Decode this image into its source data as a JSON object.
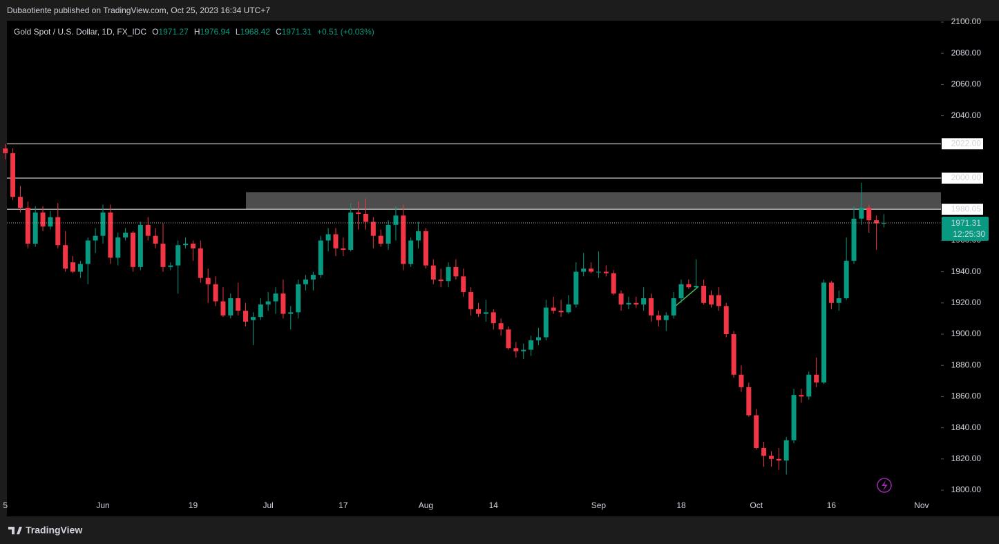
{
  "header": {
    "publisher": "Dubaotiente published on TradingView.com, Oct 25, 2023 16:34 UTC+7",
    "brand": "TradingView"
  },
  "chart_data": {
    "type": "candlestick",
    "symbol": "Gold Spot / U.S. Dollar, 1D, FX_IDC",
    "ohlc_prefixes": [
      "O",
      "H",
      "L",
      "C"
    ],
    "change": "+0.51 (+0.03%)",
    "countdown": "12:25:30",
    "up_color": "#089981",
    "down_color": "#f23645",
    "categories": [
      "5",
      null,
      null,
      null,
      null,
      null,
      null,
      null,
      null,
      null,
      null,
      null,
      null,
      "Jun",
      null,
      null,
      null,
      null,
      null,
      null,
      null,
      null,
      null,
      null,
      null,
      "19",
      null,
      null,
      null,
      null,
      null,
      null,
      null,
      null,
      null,
      "Jul",
      null,
      null,
      null,
      null,
      null,
      null,
      null,
      null,
      null,
      "17",
      null,
      null,
      null,
      null,
      null,
      null,
      null,
      null,
      null,
      null,
      "Aug",
      null,
      null,
      null,
      null,
      null,
      null,
      null,
      null,
      "14",
      null,
      null,
      null,
      null,
      null,
      null,
      null,
      null,
      null,
      null,
      null,
      null,
      null,
      "Sep",
      null,
      null,
      null,
      null,
      null,
      null,
      null,
      null,
      null,
      null,
      "18",
      null,
      null,
      null,
      null,
      null,
      null,
      null,
      null,
      null,
      "Oct",
      null,
      null,
      null,
      null,
      null,
      null,
      null,
      null,
      null,
      "16",
      null,
      null,
      null,
      null,
      null,
      null,
      null,
      null,
      null,
      null,
      null,
      "Nov"
    ],
    "open": [
      2019,
      2016,
      1988,
      1981,
      1958,
      1978,
      1969,
      1975,
      1957,
      1946,
      1940,
      1945,
      1960,
      1963,
      1978,
      1949,
      1962,
      1965,
      1943,
      1970,
      1963,
      1958,
      1943,
      1944,
      1957,
      1958,
      1955,
      1936,
      1932,
      1921,
      1912,
      1923,
      1915,
      1909,
      1911,
      1919,
      1921,
      1926,
      1913,
      1914,
      1932,
      1935,
      1938,
      1960,
      1964,
      1955,
      1954,
      1978,
      1977,
      1972,
      1963,
      1958,
      1970,
      1976,
      1945,
      1960,
      1966,
      1944,
      1935,
      1934,
      1943,
      1937,
      1927,
      1916,
      1913,
      1914,
      1907,
      1903,
      1891,
      1889,
      1890,
      1896,
      1898,
      1917,
      1915,
      1914,
      1919,
      1940,
      1942,
      1940,
      1940,
      1939,
      1926,
      1919,
      1920,
      1919,
      1923,
      1912,
      1909,
      1912,
      1923,
      1932,
      1930,
      1931,
      1925,
      1925,
      1918,
      1900,
      1874,
      1866,
      1848,
      1827,
      1822,
      1820,
      1819,
      1832,
      1861,
      1860,
      1874,
      1869,
      1933,
      1920,
      1923,
      1947,
      1974,
      1981,
      1973,
      1971.27,
      null,
      null,
      null,
      null,
      null
    ],
    "high": [
      2022,
      2019,
      1995,
      1985,
      1982,
      1982,
      1979,
      1984,
      1966,
      1950,
      1947,
      1962,
      1968,
      1983,
      1983,
      1965,
      1968,
      1966,
      1972,
      1975,
      1968,
      1971,
      1946,
      1960,
      1962,
      1960,
      1960,
      1942,
      1937,
      1930,
      1926,
      1933,
      1920,
      1914,
      1923,
      1927,
      1930,
      1935,
      1918,
      1935,
      1938,
      1940,
      1963,
      1968,
      1968,
      1962,
      1984,
      1985,
      1987,
      1975,
      1967,
      1973,
      1982,
      1983,
      1962,
      1972,
      1968,
      1948,
      1942,
      1946,
      1948,
      1942,
      1930,
      1920,
      1922,
      1916,
      1910,
      1905,
      1895,
      1894,
      1899,
      1904,
      1922,
      1924,
      1922,
      1925,
      1946,
      1952,
      1946,
      1953,
      1944,
      1941,
      1928,
      1924,
      1924,
      1930,
      1926,
      1915,
      1914,
      1927,
      1935,
      1935,
      1948,
      1935,
      1928,
      1930,
      1920,
      1902,
      1880,
      1869,
      1852,
      1831,
      1825,
      1827,
      1834,
      1865,
      1865,
      1876,
      1885,
      1935,
      1934,
      1928,
      1962,
      1982,
      1997,
      1983,
      1976,
      1976.94,
      null,
      null,
      null,
      null,
      null
    ],
    "low": [
      2012,
      1986,
      1978,
      1955,
      1956,
      1966,
      1967,
      1955,
      1940,
      1939,
      1936,
      1932,
      1952,
      1958,
      1945,
      1944,
      1960,
      1940,
      1941,
      1960,
      1955,
      1940,
      1941,
      1926,
      1955,
      1947,
      1933,
      1920,
      1918,
      1911,
      1910,
      1912,
      1905,
      1893,
      1909,
      1915,
      1913,
      1910,
      1903,
      1910,
      1928,
      1928,
      1936,
      1953,
      1950,
      1950,
      1953,
      1967,
      1967,
      1955,
      1956,
      1954,
      1960,
      1941,
      1943,
      1955,
      1942,
      1932,
      1930,
      1930,
      1935,
      1924,
      1912,
      1911,
      1908,
      1903,
      1899,
      1890,
      1885,
      1884,
      1886,
      1893,
      1896,
      1913,
      1911,
      1913,
      1917,
      1937,
      1939,
      1936,
      1937,
      1925,
      1915,
      1916,
      1917,
      1915,
      1908,
      1905,
      1902,
      1910,
      1920,
      1929,
      1929,
      1919,
      1917,
      1915,
      1898,
      1872,
      1863,
      1847,
      1826,
      1815,
      1815,
      1813,
      1810,
      1830,
      1856,
      1858,
      1866,
      1868,
      1916,
      1915,
      1922,
      1945,
      1970,
      1965,
      1954,
      1968.42,
      null,
      null,
      null,
      null,
      null
    ],
    "close": [
      2016,
      1988,
      1981,
      1958,
      1978,
      1969,
      1975,
      1957,
      1942,
      1940,
      1945,
      1960,
      1963,
      1978,
      1949,
      1962,
      1965,
      1943,
      1970,
      1963,
      1958,
      1943,
      1944,
      1957,
      1958,
      1955,
      1936,
      1932,
      1921,
      1912,
      1923,
      1915,
      1908,
      1911,
      1919,
      1921,
      1926,
      1913,
      1914,
      1932,
      1935,
      1938,
      1960,
      1964,
      1955,
      1954,
      1978,
      1977,
      1972,
      1963,
      1958,
      1970,
      1976,
      1945,
      1960,
      1966,
      1944,
      1935,
      1934,
      1943,
      1937,
      1927,
      1916,
      1913,
      1914,
      1907,
      1903,
      1891,
      1889,
      1890,
      1896,
      1898,
      1917,
      1915,
      1914,
      1919,
      1940,
      1942,
      1940,
      1940,
      1939,
      1926,
      1919,
      1920,
      1919,
      1923,
      1912,
      1909,
      1912,
      1923,
      1932,
      1930,
      1931,
      1920,
      1919,
      1918,
      1900,
      1874,
      1866,
      1848,
      1827,
      1822,
      1820,
      1819,
      1832,
      1861,
      1860,
      1874,
      1869,
      1933,
      1920,
      1923,
      1947,
      1974,
      1981,
      1973,
      1971,
      1971.31,
      null,
      null,
      null,
      null,
      null
    ],
    "ylim": [
      1800,
      2100
    ],
    "yticks": [
      {
        "value": 1800,
        "label": "1800.00"
      },
      {
        "value": 1820,
        "label": "1820.00"
      },
      {
        "value": 1840,
        "label": "1840.00"
      },
      {
        "value": 1860,
        "label": "1860.00"
      },
      {
        "value": 1880,
        "label": "1880.00"
      },
      {
        "value": 1900,
        "label": "1900.00"
      },
      {
        "value": 1920,
        "label": "1920.00"
      },
      {
        "value": 1940,
        "label": "1940.00"
      },
      {
        "value": 1960,
        "label": "1960.00"
      },
      {
        "value": 2000,
        "label": "2000.00"
      },
      {
        "value": 2040,
        "label": "2040.00"
      },
      {
        "value": 2060,
        "label": "2060.00"
      },
      {
        "value": 2080,
        "label": "2080.00"
      },
      {
        "value": 2100,
        "label": "2100.00"
      }
    ],
    "levels": [
      {
        "value": 2022,
        "label": "2022.00"
      },
      {
        "value": 2000,
        "label": "2000.00"
      },
      {
        "value": 1980.05,
        "label": "1980.05"
      }
    ],
    "zone": [
      1980.05,
      1991
    ]
  }
}
